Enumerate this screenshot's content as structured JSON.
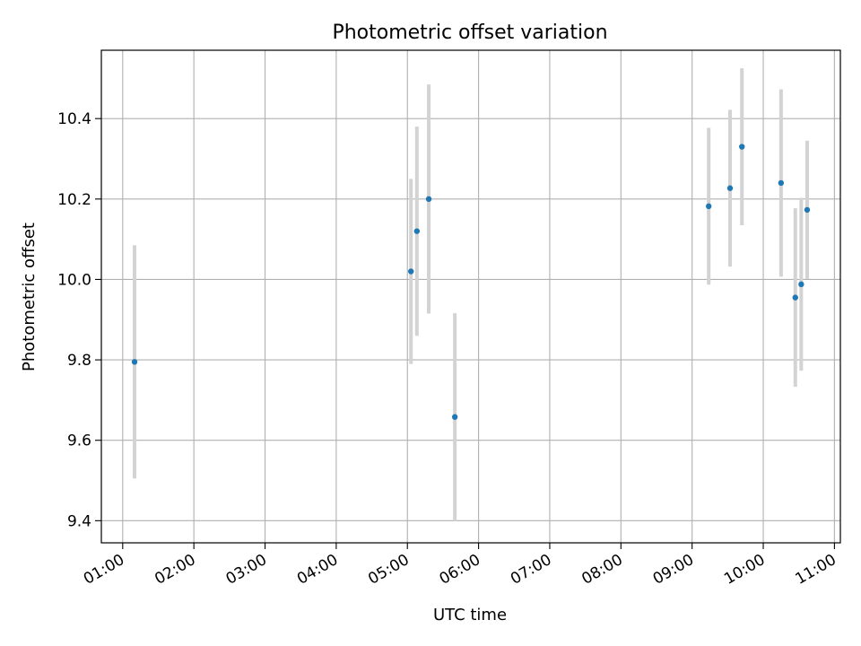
{
  "chart_data": {
    "type": "scatter",
    "title": "Photometric offset variation",
    "xlabel": "UTC time",
    "ylabel": "Photometric offset",
    "xlim": [
      "00:42",
      "11:05"
    ],
    "ylim": [
      9.345,
      10.57
    ],
    "grid": true,
    "x_ticks": [
      "01:00",
      "02:00",
      "03:00",
      "04:00",
      "05:00",
      "06:00",
      "07:00",
      "08:00",
      "09:00",
      "10:00",
      "11:00"
    ],
    "y_ticks": [
      "9.4",
      "9.6",
      "9.8",
      "10.0",
      "10.2",
      "10.4"
    ],
    "series": [
      {
        "marker_color": "#1f77b4",
        "errorbar_color": "#d3d3d3",
        "points": [
          {
            "x": "01:10",
            "y": 9.795,
            "yerr": 0.29
          },
          {
            "x": "05:03",
            "y": 10.02,
            "yerr": 0.23
          },
          {
            "x": "05:08",
            "y": 10.12,
            "yerr": 0.26
          },
          {
            "x": "05:18",
            "y": 10.2,
            "yerr": 0.285
          },
          {
            "x": "05:40",
            "y": 9.658,
            "yerr": 0.258
          },
          {
            "x": "09:14",
            "y": 10.182,
            "yerr": 0.195
          },
          {
            "x": "09:32",
            "y": 10.227,
            "yerr": 0.195
          },
          {
            "x": "09:42",
            "y": 10.33,
            "yerr": 0.195
          },
          {
            "x": "10:15",
            "y": 10.24,
            "yerr": 0.233
          },
          {
            "x": "10:27",
            "y": 9.955,
            "yerr": 0.222
          },
          {
            "x": "10:32",
            "y": 9.988,
            "yerr": 0.215
          },
          {
            "x": "10:37",
            "y": 10.173,
            "yerr": 0.172
          }
        ]
      }
    ]
  }
}
